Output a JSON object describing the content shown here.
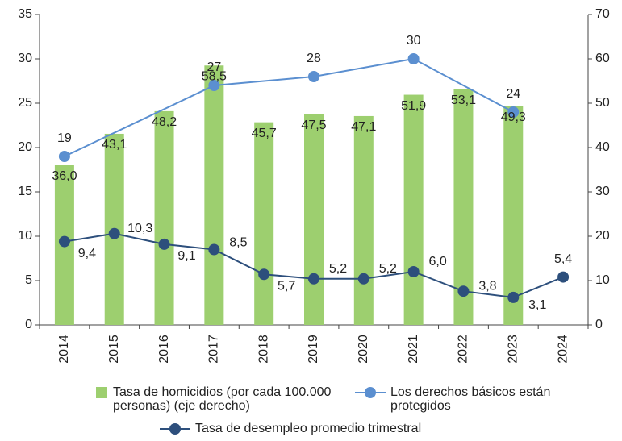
{
  "chart_data": {
    "type": "bar-line",
    "x": [
      2014,
      2015,
      2016,
      2017,
      2018,
      2019,
      2020,
      2021,
      2022,
      2023,
      2024
    ],
    "xlim": [
      2013.5,
      2024.5
    ],
    "ylim": [
      0,
      35
    ],
    "yticks": [
      0,
      5,
      10,
      15,
      20,
      25,
      30,
      35
    ],
    "y2lim": [
      0,
      70
    ],
    "y2ticks": [
      0,
      10,
      20,
      30,
      40,
      50,
      60,
      70
    ],
    "series": [
      {
        "name": "Tasa de homicidios (por cada 100.000 personas) (eje derecho)",
        "type": "bar",
        "axis": "y2",
        "color": "#9dcf6f",
        "values": [
          36.0,
          43.1,
          48.2,
          58.5,
          45.7,
          47.5,
          47.1,
          51.9,
          53.1,
          49.3,
          null
        ],
        "value_labels": [
          "36,0",
          "43,1",
          "48,2",
          "58,5",
          "45,7",
          "47,5",
          "47,1",
          "51,9",
          "53,1",
          "49,3",
          null
        ]
      },
      {
        "name": "Los derechos básicos están protegidos",
        "type": "line",
        "color": "#5b8fd0",
        "x": [
          2014,
          2017,
          2019,
          2021,
          2023
        ],
        "values": [
          19,
          27,
          28,
          30,
          24
        ]
      },
      {
        "name": "Tasa de desempleo promedio trimestral",
        "type": "line",
        "color": "#2d4f7c",
        "values": [
          9.4,
          10.3,
          9.1,
          8.5,
          5.7,
          5.2,
          5.2,
          6.0,
          3.8,
          3.1,
          5.4
        ],
        "value_labels": [
          "9,4",
          "10,3",
          "9,1",
          "8,5",
          "5,7",
          "5,2",
          "5,2",
          "6,0",
          "3,8",
          "3,1",
          "5,4"
        ]
      }
    ]
  }
}
